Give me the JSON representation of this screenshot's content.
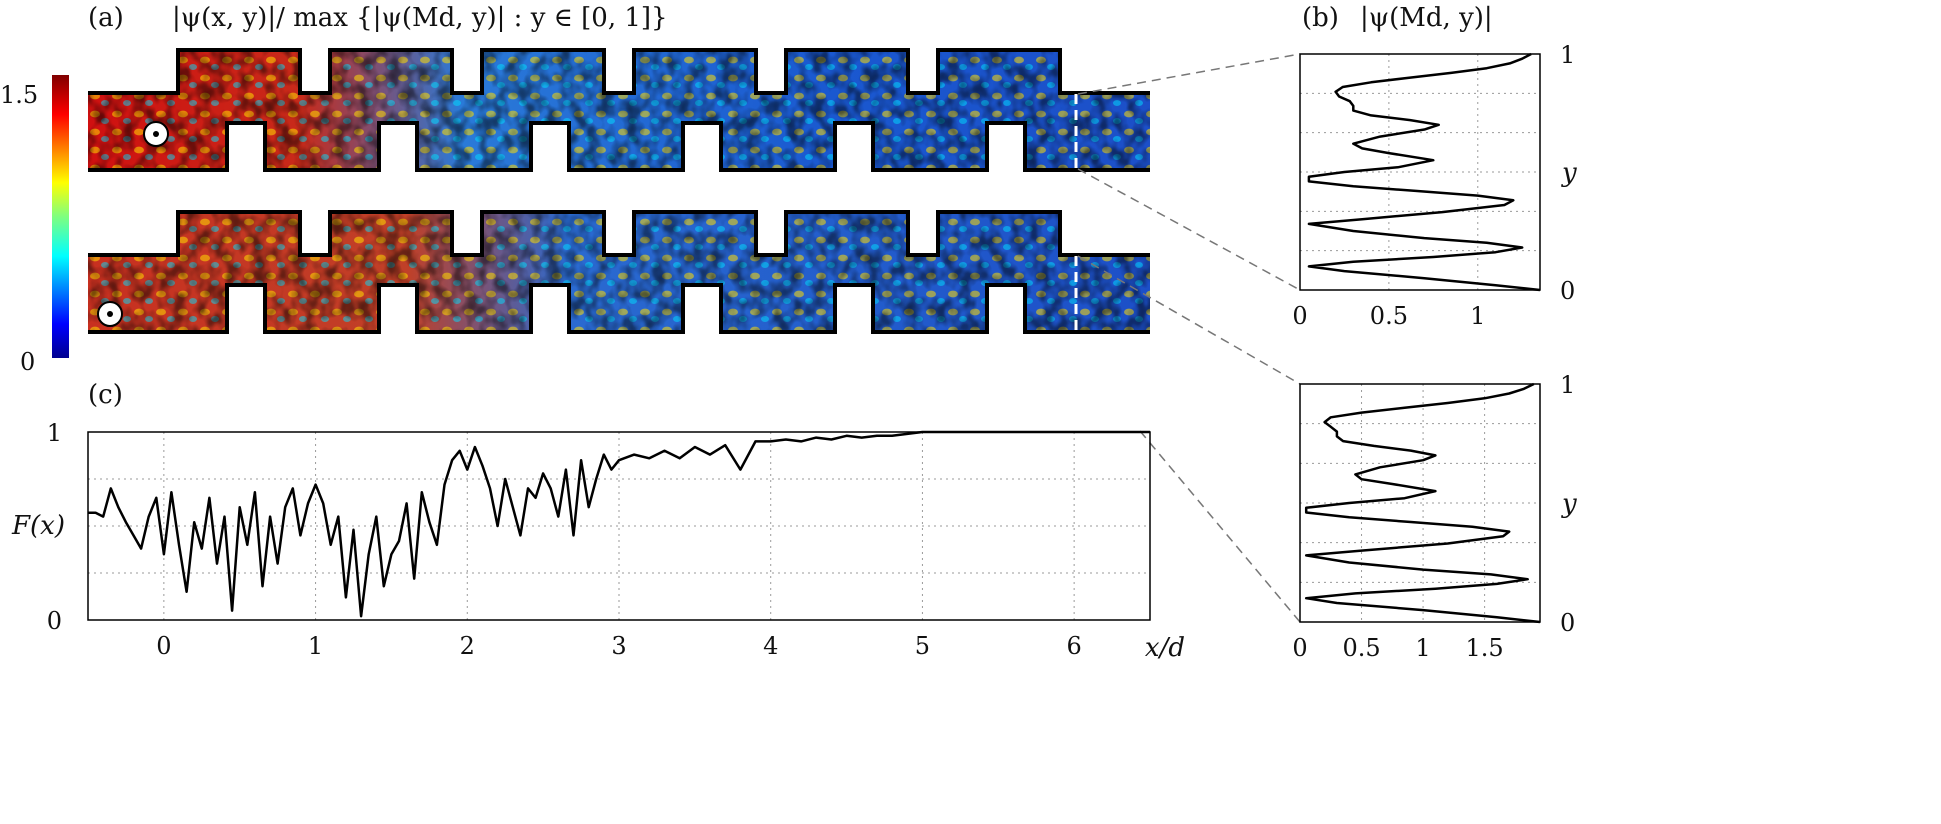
{
  "panel_a": {
    "label": "(a)",
    "title": "|ψ(x, y)|/ max {|ψ(Md, y)| : y ∈ [0, 1]}",
    "colorbar": {
      "max_label": "1.5",
      "min_label": "0",
      "range": [
        0,
        1.5
      ],
      "colormap": "jet"
    }
  },
  "panel_b": {
    "label": "(b)",
    "title": "|ψ(Md, y)|"
  },
  "panel_c": {
    "label": "(c)"
  },
  "colors": {
    "line": "#000000",
    "frame": "#000000",
    "grid": "#9a9a9a",
    "link": "#777777"
  },
  "chart_data": [
    {
      "id": "c",
      "type": "line",
      "title": "",
      "xlabel": "x/d",
      "ylabel": "F(x)",
      "xlim": [
        -0.5,
        6.5
      ],
      "ylim": [
        0,
        1
      ],
      "xticks": [
        "0",
        "1",
        "2",
        "3",
        "4",
        "5",
        "6"
      ],
      "yticks": [
        "0",
        "1"
      ],
      "grid": true,
      "x": [
        -0.5,
        -0.45,
        -0.4,
        -0.35,
        -0.3,
        -0.25,
        -0.2,
        -0.15,
        -0.1,
        -0.05,
        0,
        0.05,
        0.1,
        0.15,
        0.2,
        0.25,
        0.3,
        0.35,
        0.4,
        0.45,
        0.5,
        0.55,
        0.6,
        0.65,
        0.7,
        0.75,
        0.8,
        0.85,
        0.9,
        0.95,
        1,
        1.05,
        1.1,
        1.15,
        1.2,
        1.25,
        1.3,
        1.35,
        1.4,
        1.45,
        1.5,
        1.55,
        1.6,
        1.65,
        1.7,
        1.75,
        1.8,
        1.85,
        1.9,
        1.95,
        2,
        2.05,
        2.1,
        2.15,
        2.2,
        2.25,
        2.3,
        2.35,
        2.4,
        2.45,
        2.5,
        2.55,
        2.6,
        2.65,
        2.7,
        2.75,
        2.8,
        2.85,
        2.9,
        2.95,
        3,
        3.1,
        3.2,
        3.3,
        3.4,
        3.5,
        3.6,
        3.7,
        3.8,
        3.9,
        4,
        4.1,
        4.2,
        4.3,
        4.4,
        4.5,
        4.6,
        4.7,
        4.8,
        4.9,
        5,
        5.2,
        5.4,
        5.6,
        5.8,
        6,
        6.2,
        6.5
      ],
      "y": [
        0.57,
        0.57,
        0.55,
        0.7,
        0.6,
        0.52,
        0.45,
        0.38,
        0.55,
        0.65,
        0.35,
        0.68,
        0.4,
        0.15,
        0.52,
        0.38,
        0.65,
        0.3,
        0.55,
        0.05,
        0.6,
        0.4,
        0.68,
        0.18,
        0.55,
        0.3,
        0.6,
        0.7,
        0.45,
        0.62,
        0.72,
        0.62,
        0.4,
        0.55,
        0.12,
        0.48,
        0.02,
        0.35,
        0.55,
        0.18,
        0.35,
        0.42,
        0.62,
        0.22,
        0.68,
        0.52,
        0.4,
        0.72,
        0.85,
        0.9,
        0.8,
        0.92,
        0.82,
        0.7,
        0.5,
        0.75,
        0.6,
        0.45,
        0.7,
        0.65,
        0.78,
        0.7,
        0.55,
        0.8,
        0.45,
        0.85,
        0.6,
        0.75,
        0.88,
        0.8,
        0.85,
        0.88,
        0.86,
        0.9,
        0.86,
        0.92,
        0.88,
        0.93,
        0.8,
        0.95,
        0.95,
        0.96,
        0.95,
        0.97,
        0.96,
        0.98,
        0.97,
        0.98,
        0.98,
        0.99,
        1.0,
        1.0,
        1.0,
        1.0,
        1.0,
        1.0,
        1.0,
        1.0
      ]
    },
    {
      "id": "b_top",
      "type": "line",
      "title": "|ψ(Md, y)|",
      "xlabel": "",
      "ylabel": "y",
      "xlim": [
        0,
        1.35
      ],
      "ylim": [
        0,
        1
      ],
      "xticks": [
        "0",
        "0.5",
        "1"
      ],
      "yticks": [
        "0",
        "1"
      ],
      "grid": true,
      "y": [
        0,
        0.02,
        0.05,
        0.08,
        0.1,
        0.12,
        0.14,
        0.16,
        0.18,
        0.2,
        0.22,
        0.25,
        0.28,
        0.3,
        0.33,
        0.36,
        0.38,
        0.4,
        0.42,
        0.44,
        0.46,
        0.48,
        0.5,
        0.52,
        0.55,
        0.58,
        0.6,
        0.62,
        0.65,
        0.68,
        0.7,
        0.72,
        0.74,
        0.76,
        0.78,
        0.8,
        0.82,
        0.84,
        0.86,
        0.88,
        0.9,
        0.92,
        0.94,
        0.96,
        0.98,
        1.0
      ],
      "x": [
        1.35,
        1.1,
        0.7,
        0.25,
        0.05,
        0.3,
        0.75,
        1.1,
        1.25,
        1.05,
        0.7,
        0.3,
        0.05,
        0.35,
        0.8,
        1.15,
        1.2,
        1.0,
        0.65,
        0.3,
        0.05,
        0.05,
        0.25,
        0.55,
        0.75,
        0.5,
        0.35,
        0.3,
        0.45,
        0.7,
        0.78,
        0.62,
        0.4,
        0.3,
        0.3,
        0.28,
        0.22,
        0.2,
        0.24,
        0.4,
        0.62,
        0.85,
        1.05,
        1.18,
        1.25,
        1.3
      ]
    },
    {
      "id": "b_bottom",
      "type": "line",
      "title": "",
      "xlabel": "",
      "ylabel": "y",
      "xlim": [
        0,
        1.95
      ],
      "ylim": [
        0,
        1
      ],
      "xticks": [
        "0",
        "0.5",
        "1",
        "1.5"
      ],
      "yticks": [
        "0",
        "1"
      ],
      "grid": true,
      "y": [
        0,
        0.02,
        0.05,
        0.08,
        0.1,
        0.12,
        0.14,
        0.16,
        0.18,
        0.2,
        0.22,
        0.25,
        0.28,
        0.3,
        0.33,
        0.36,
        0.38,
        0.4,
        0.42,
        0.44,
        0.46,
        0.48,
        0.5,
        0.52,
        0.55,
        0.58,
        0.6,
        0.62,
        0.65,
        0.68,
        0.7,
        0.72,
        0.74,
        0.76,
        0.78,
        0.8,
        0.82,
        0.84,
        0.86,
        0.88,
        0.9,
        0.92,
        0.94,
        0.96,
        0.98,
        1.0
      ],
      "x": [
        1.95,
        1.6,
        1.0,
        0.3,
        0.05,
        0.45,
        1.1,
        1.6,
        1.85,
        1.55,
        1.0,
        0.4,
        0.05,
        0.5,
        1.2,
        1.65,
        1.7,
        1.4,
        0.9,
        0.4,
        0.05,
        0.05,
        0.4,
        0.85,
        1.1,
        0.75,
        0.5,
        0.45,
        0.65,
        1.0,
        1.1,
        0.9,
        0.6,
        0.35,
        0.3,
        0.3,
        0.25,
        0.2,
        0.25,
        0.5,
        0.85,
        1.2,
        1.5,
        1.7,
        1.82,
        1.9
      ]
    }
  ]
}
